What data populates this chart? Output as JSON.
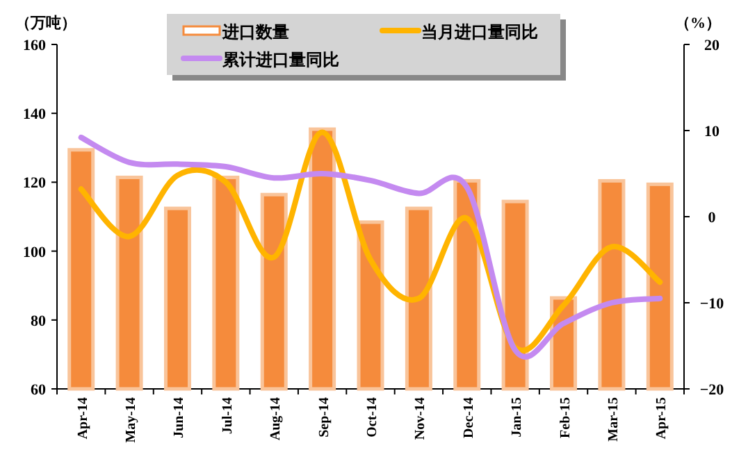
{
  "chart_data": {
    "type": "bar",
    "ylabel": "（万吨）",
    "y2label": "（%）",
    "categories": [
      "Apr-14",
      "May-14",
      "Jun-14",
      "Jul-14",
      "Aug-14",
      "Sep-14",
      "Oct-14",
      "Nov-14",
      "Dec-14",
      "Jan-15",
      "Feb-15",
      "Mar-15",
      "Apr-15"
    ],
    "series": [
      {
        "name": "进口数量",
        "color": "#f58b3c",
        "values": [
          129,
          121,
          112,
          121,
          116,
          135,
          108,
          112,
          120,
          114,
          86,
          120,
          119
        ]
      },
      {
        "name": "当月进口量同比",
        "type": "line",
        "axis": "y2",
        "color": "#ffb400",
        "values": [
          3.2,
          -2.3,
          4.8,
          4.0,
          -4.7,
          9.8,
          -5,
          -9.5,
          -0.2,
          -15.2,
          -10.3,
          -3.5,
          -7.6
        ]
      },
      {
        "name": "累计进口量同比",
        "type": "line",
        "axis": "y2",
        "color": "#c48af0",
        "values": [
          9.2,
          6.3,
          6.1,
          5.8,
          4.5,
          5,
          4.2,
          2.7,
          3.4,
          -15.5,
          -12.4,
          -10,
          -9.5
        ]
      }
    ],
    "ylim": [
      60,
      160
    ],
    "yticks": [
      60,
      80,
      100,
      120,
      140,
      160
    ],
    "y2lim": [
      -20,
      20
    ],
    "y2ticks": [
      -20,
      -10,
      0,
      10,
      20
    ],
    "legend": "top",
    "grid": false
  }
}
